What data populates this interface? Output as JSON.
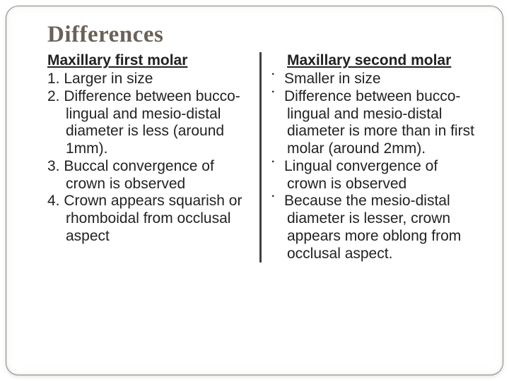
{
  "title": {
    "text": "Differences",
    "fontsize": 33,
    "color": "#6b6158"
  },
  "layout": {
    "left_width": 300,
    "right_width": 300,
    "body_fontsize": 21,
    "subhead_fontsize": 21,
    "divider_color": "#404040",
    "background": "#ffffff",
    "frame_border_color": "#888888"
  },
  "left": {
    "heading": "Maxillary first molar",
    "items": [
      "Larger in size",
      "Difference between bucco-lingual and mesio-distal diameter is less (around 1mm).",
      "Buccal convergence of crown is observed",
      "Crown appears squarish or rhomboidal from occlusal aspect"
    ]
  },
  "right": {
    "heading": "Maxillary second molar",
    "bullet_glyph": "་",
    "items": [
      "Smaller in size",
      "Difference between bucco-lingual and mesio-distal diameter is more than in first molar (around 2mm).",
      "Lingual convergence of crown is observed",
      "Because the mesio-distal diameter is lesser, crown appears more oblong from occlusal aspect."
    ]
  }
}
